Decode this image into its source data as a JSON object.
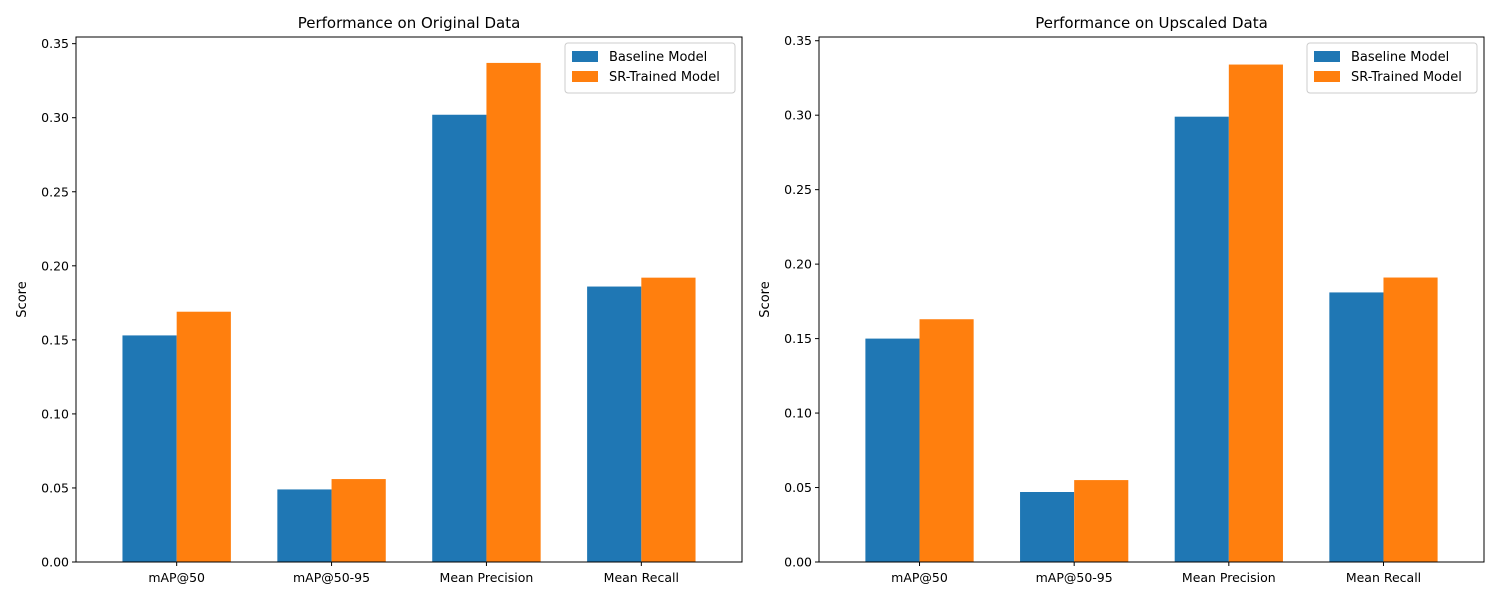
{
  "chart_data": [
    {
      "type": "bar",
      "title": "Performance on Original Data",
      "xlabel": "",
      "ylabel": "Score",
      "ylim": [
        0,
        0.35
      ],
      "yticks": [
        "0.00",
        "0.05",
        "0.10",
        "0.15",
        "0.20",
        "0.25",
        "0.30",
        "0.35"
      ],
      "categories": [
        "mAP@50",
        "mAP@50-95",
        "Mean Precision",
        "Mean Recall"
      ],
      "series": [
        {
          "name": "Baseline Model",
          "color": "#1f77b4",
          "values": [
            0.153,
            0.049,
            0.302,
            0.186
          ]
        },
        {
          "name": "SR-Trained Model",
          "color": "#ff7f0e",
          "values": [
            0.169,
            0.056,
            0.337,
            0.192
          ]
        }
      ],
      "legend": "top-right",
      "grid": false
    },
    {
      "type": "bar",
      "title": "Performance on Upscaled Data",
      "xlabel": "",
      "ylabel": "Score",
      "ylim": [
        0,
        0.35
      ],
      "yticks": [
        "0.00",
        "0.05",
        "0.10",
        "0.15",
        "0.20",
        "0.25",
        "0.30",
        "0.35"
      ],
      "categories": [
        "mAP@50",
        "mAP@50-95",
        "Mean Precision",
        "Mean Recall"
      ],
      "series": [
        {
          "name": "Baseline Model",
          "color": "#1f77b4",
          "values": [
            0.15,
            0.047,
            0.299,
            0.181
          ]
        },
        {
          "name": "SR-Trained Model",
          "color": "#ff7f0e",
          "values": [
            0.163,
            0.055,
            0.334,
            0.191
          ]
        }
      ],
      "legend": "top-right",
      "grid": false
    }
  ]
}
